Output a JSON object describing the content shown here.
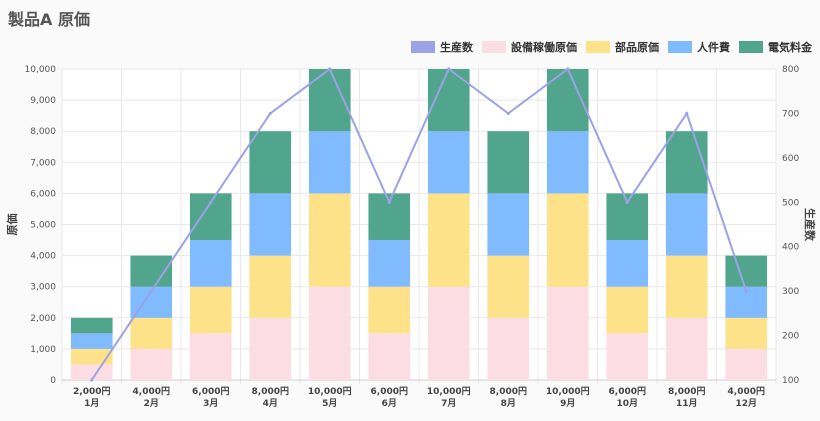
{
  "page": {
    "title": "製品A 原価"
  },
  "chart_data": {
    "type": "bar",
    "title": "製品A 原価",
    "categories": [
      [
        "2,000円",
        "1月"
      ],
      [
        "4,000円",
        "2月"
      ],
      [
        "6,000円",
        "3月"
      ],
      [
        "8,000円",
        "4月"
      ],
      [
        "10,000円",
        "5月"
      ],
      [
        "6,000円",
        "6月"
      ],
      [
        "10,000円",
        "7月"
      ],
      [
        "8,000円",
        "8月"
      ],
      [
        "10,000円",
        "9月"
      ],
      [
        "6,000円",
        "10月"
      ],
      [
        "8,000円",
        "11月"
      ],
      [
        "4,000円",
        "12月"
      ]
    ],
    "stacked": true,
    "series": [
      {
        "name": "設備稼働原価",
        "color": "#fddde4",
        "values": [
          500,
          1000,
          1500,
          2000,
          3000,
          1500,
          3000,
          2000,
          3000,
          1500,
          2000,
          1000
        ]
      },
      {
        "name": "部品原価",
        "color": "#fde28a",
        "values": [
          500,
          1000,
          1500,
          2000,
          3000,
          1500,
          3000,
          2000,
          3000,
          1500,
          2000,
          1000
        ]
      },
      {
        "name": "人件費",
        "color": "#80baff",
        "values": [
          500,
          1000,
          1500,
          2000,
          2000,
          1500,
          2000,
          2000,
          2000,
          1500,
          2000,
          1000
        ]
      },
      {
        "name": "電気料金",
        "color": "#52a58d",
        "values": [
          500,
          1000,
          1500,
          2000,
          2000,
          1500,
          2000,
          2000,
          2000,
          1500,
          2000,
          1000
        ]
      }
    ],
    "line_series": {
      "name": "生産数",
      "color": "#9ba2e6",
      "values": [
        100,
        300,
        500,
        700,
        800,
        500,
        800,
        700,
        800,
        500,
        700,
        300
      ],
      "axis": "right"
    },
    "legend_order": [
      "生産数",
      "設備稼働原価",
      "部品原価",
      "人件費",
      "電気料金"
    ],
    "ylabel": "原価",
    "ylim": [
      0,
      10000
    ],
    "yticks": [
      "0",
      "1,000",
      "2,000",
      "3,000",
      "4,000",
      "5,000",
      "6,000",
      "7,000",
      "8,000",
      "9,000",
      "10,000"
    ],
    "y2label": "生産数",
    "y2lim": [
      100,
      800
    ],
    "y2ticks": [
      "100",
      "200",
      "300",
      "400",
      "500",
      "600",
      "700",
      "800"
    ],
    "legend_position": "top-right",
    "grid": true
  }
}
